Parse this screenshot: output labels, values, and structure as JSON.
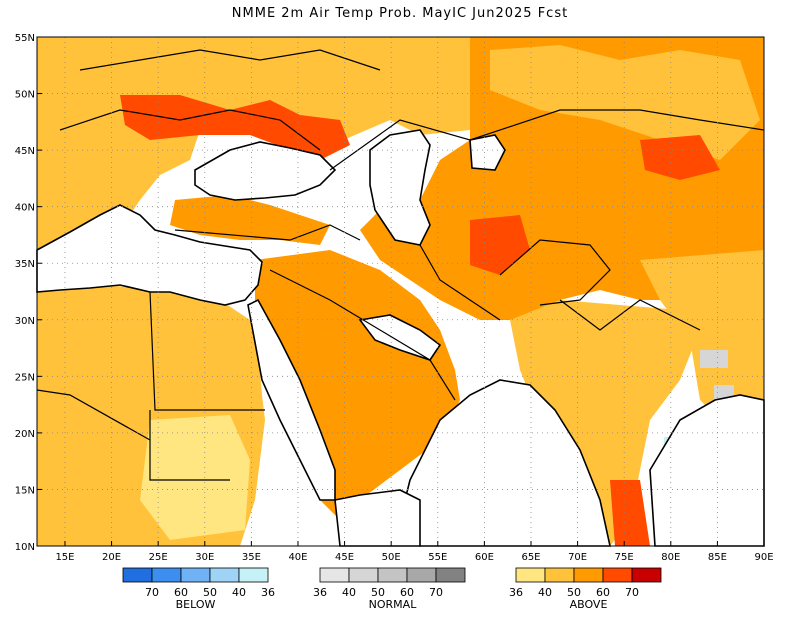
{
  "title": "NMME 2m Air Temp Prob. MayIC  Jun2025 Fcst",
  "lat_labels": [
    "55N",
    "50N",
    "45N",
    "40N",
    "35N",
    "30N",
    "25N",
    "20N",
    "15N",
    "10N"
  ],
  "lon_labels": [
    "15E",
    "20E",
    "25E",
    "30E",
    "35E",
    "40E",
    "45E",
    "50E",
    "55E",
    "60E",
    "65E",
    "70E",
    "75E",
    "80E",
    "85E",
    "90E"
  ],
  "legends": [
    {
      "name": "BELOW",
      "ticks": [
        "70",
        "60",
        "50",
        "40",
        "36"
      ],
      "colors": [
        "#1f6fe0",
        "#3c8ff0",
        "#6fb2f5",
        "#9fd4f7",
        "#c6f2f7"
      ]
    },
    {
      "name": "NORMAL",
      "ticks": [
        "36",
        "40",
        "50",
        "60",
        "70"
      ],
      "colors": [
        "#e6e6e6",
        "#d6d6d6",
        "#c4c4c4",
        "#a8a8a8",
        "#828282"
      ]
    },
    {
      "name": "ABOVE",
      "ticks": [
        "36",
        "40",
        "50",
        "60",
        "70"
      ],
      "colors": [
        "#ffe680",
        "#ffc23a",
        "#ff9a00",
        "#ff4a00",
        "#c80000"
      ]
    }
  ],
  "colors": {
    "land_outline": "#000000",
    "grid": "#888888",
    "ocean": "#ffffff"
  }
}
